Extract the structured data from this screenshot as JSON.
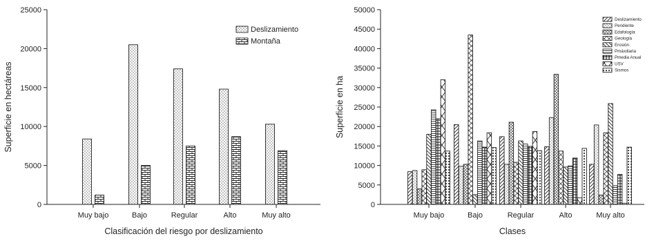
{
  "chart_data": [
    {
      "type": "bar",
      "categories": [
        "Muy bajo",
        "Bajo",
        "Regular",
        "Alto",
        "Muy alto"
      ],
      "series": [
        {
          "name": "Deslizamiento",
          "values": [
            8400,
            20500,
            17400,
            14800,
            10300
          ],
          "pattern": "dots"
        },
        {
          "name": "Montaña",
          "values": [
            1200,
            5000,
            7500,
            8700,
            6900
          ],
          "pattern": "bricks"
        }
      ],
      "xlabel": "Clasificación del riesgo por deslizamiento",
      "ylabel": "Superficie en hectáreas",
      "ylim": [
        0,
        25000
      ],
      "yticks": [
        0,
        5000,
        10000,
        15000,
        20000,
        25000
      ],
      "legend": "top-right",
      "grid": false
    },
    {
      "type": "bar",
      "categories": [
        "Muy bajo",
        "Bajo",
        "Regular",
        "Alto",
        "Muy alto"
      ],
      "series": [
        {
          "name": "Deslizamiento",
          "values": [
            8400,
            20500,
            17400,
            14800,
            10300
          ],
          "pattern": "diag"
        },
        {
          "name": "Pendiente",
          "values": [
            8700,
            9800,
            10300,
            22300,
            20400
          ],
          "pattern": "dots"
        },
        {
          "name": "Edafología",
          "values": [
            4000,
            10300,
            21100,
            33400,
            2400
          ],
          "pattern": "crosshatch"
        },
        {
          "name": "Geología",
          "values": [
            8900,
            43500,
            10800,
            13700,
            18400
          ],
          "pattern": "xhatch"
        },
        {
          "name": "Erosión",
          "values": [
            18000,
            2500,
            16300,
            9600,
            25900
          ],
          "pattern": "backdiag"
        },
        {
          "name": "Pmáxdiaria",
          "values": [
            24300,
            16300,
            15500,
            9900,
            4800
          ],
          "pattern": "hlines"
        },
        {
          "name": "Pmedia Anual",
          "values": [
            22000,
            14700,
            14900,
            11900,
            7700
          ],
          "pattern": "grid"
        },
        {
          "name": "USV",
          "values": [
            32000,
            18400,
            18700,
            1700,
            300
          ],
          "pattern": "bigx"
        },
        {
          "name": "Sismos",
          "values": [
            13700,
            14600,
            13800,
            14400,
            14700
          ],
          "pattern": "bigdots"
        }
      ],
      "xlabel": "Clases",
      "ylabel": "Superficie en ha",
      "ylim": [
        0,
        50000
      ],
      "yticks": [
        0,
        5000,
        10000,
        15000,
        20000,
        25000,
        30000,
        35000,
        40000,
        45000,
        50000
      ],
      "legend": "top-right",
      "grid": false
    }
  ]
}
